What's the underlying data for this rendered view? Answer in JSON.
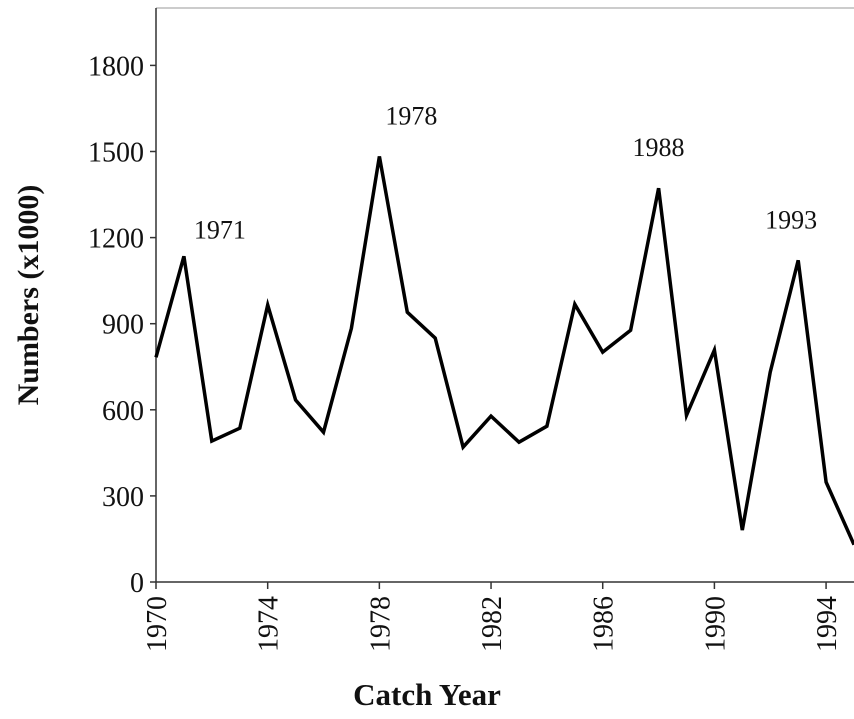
{
  "chart_data": {
    "type": "line",
    "x_label": "Catch Year",
    "y_label": "Numbers (x1000)",
    "x": [
      1970,
      1971,
      1972,
      1973,
      1974,
      1975,
      1976,
      1977,
      1978,
      1979,
      1980,
      1981,
      1982,
      1983,
      1984,
      1985,
      1986,
      1987,
      1988,
      1989,
      1990,
      1991,
      1992,
      1993,
      1994,
      1995
    ],
    "series": [
      {
        "name": "Numbers",
        "color": "#000000",
        "values": [
          783,
          1135,
          491,
          536,
          965,
          634,
          522,
          884,
          1483,
          940,
          850,
          470,
          578,
          487,
          543,
          968,
          801,
          877,
          1372,
          581,
          808,
          181,
          731,
          1121,
          348,
          130
        ]
      }
    ],
    "annotations": [
      "1971",
      "1978",
      "1988",
      "1993"
    ],
    "xlim": [
      1970,
      1995
    ],
    "xticks": [
      1970,
      1974,
      1978,
      1982,
      1986,
      1990,
      1994
    ],
    "ylim": [
      0,
      2000
    ],
    "yticks": [
      0,
      300,
      600,
      900,
      1200,
      1500,
      1800
    ]
  }
}
